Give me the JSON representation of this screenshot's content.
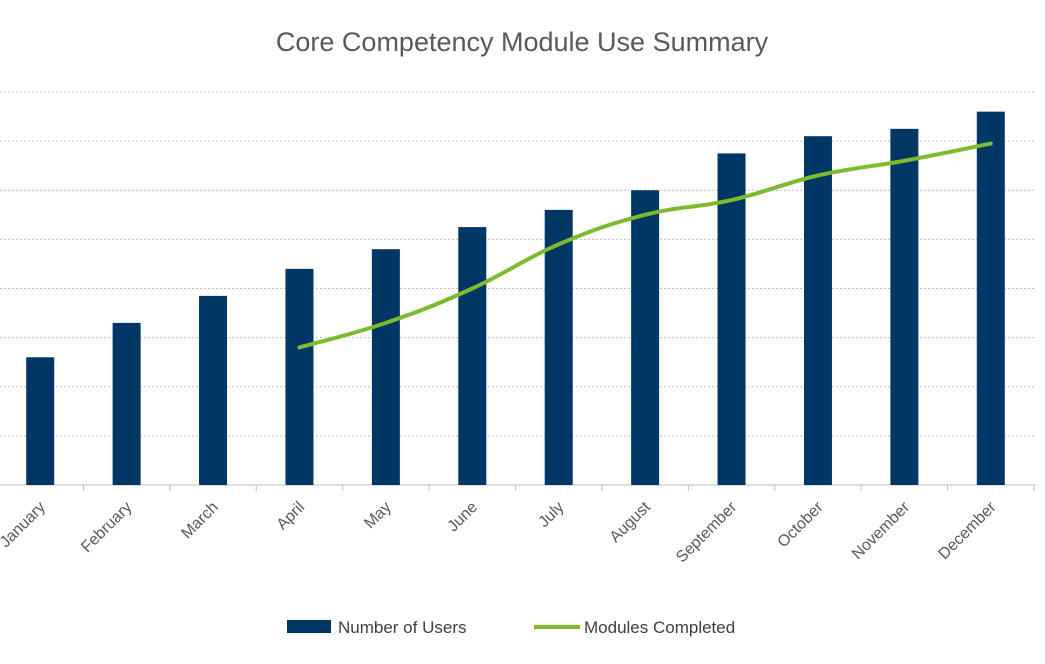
{
  "chart_data": {
    "type": "bar",
    "title": "Core Competency Module Use Summary",
    "xlabel": "",
    "ylabel": "",
    "categories": [
      "January",
      "February",
      "March",
      "April",
      "May",
      "June",
      "July",
      "August",
      "September",
      "October",
      "November",
      "December"
    ],
    "ylim": [
      0,
      8
    ],
    "grid": true,
    "legend_position": "bottom",
    "series": [
      {
        "name": "Number of Users",
        "type": "bar",
        "color": "#003764",
        "values": [
          2.6,
          3.3,
          3.85,
          4.4,
          4.8,
          5.25,
          5.6,
          6.0,
          6.75,
          7.1,
          7.25,
          7.6
        ]
      },
      {
        "name": "Modules Completed",
        "type": "line",
        "color": "#7dba2e",
        "values": [
          null,
          null,
          null,
          2.8,
          3.3,
          4.0,
          4.9,
          5.5,
          5.8,
          6.3,
          6.6,
          6.95
        ]
      }
    ]
  }
}
